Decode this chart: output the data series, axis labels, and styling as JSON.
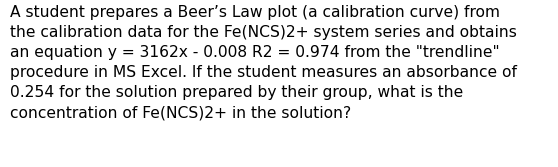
{
  "lines": [
    "A student prepares a Beer’s Law plot (a calibration curve) from",
    "the calibration data for the Fe(NCS)2+ system series and obtains",
    "an equation y = 3162x - 0.008 R2 = 0.974 from the \"trendline\"",
    "procedure in MS Excel. If the student measures an absorbance of",
    "0.254 for the solution prepared by their group, what is the",
    "concentration of Fe(NCS)2+ in the solution?"
  ],
  "background_color": "#ffffff",
  "text_color": "#000000",
  "font_size": 11.2,
  "font_family": "DejaVu Sans",
  "fig_width": 5.58,
  "fig_height": 1.67,
  "dpi": 100
}
